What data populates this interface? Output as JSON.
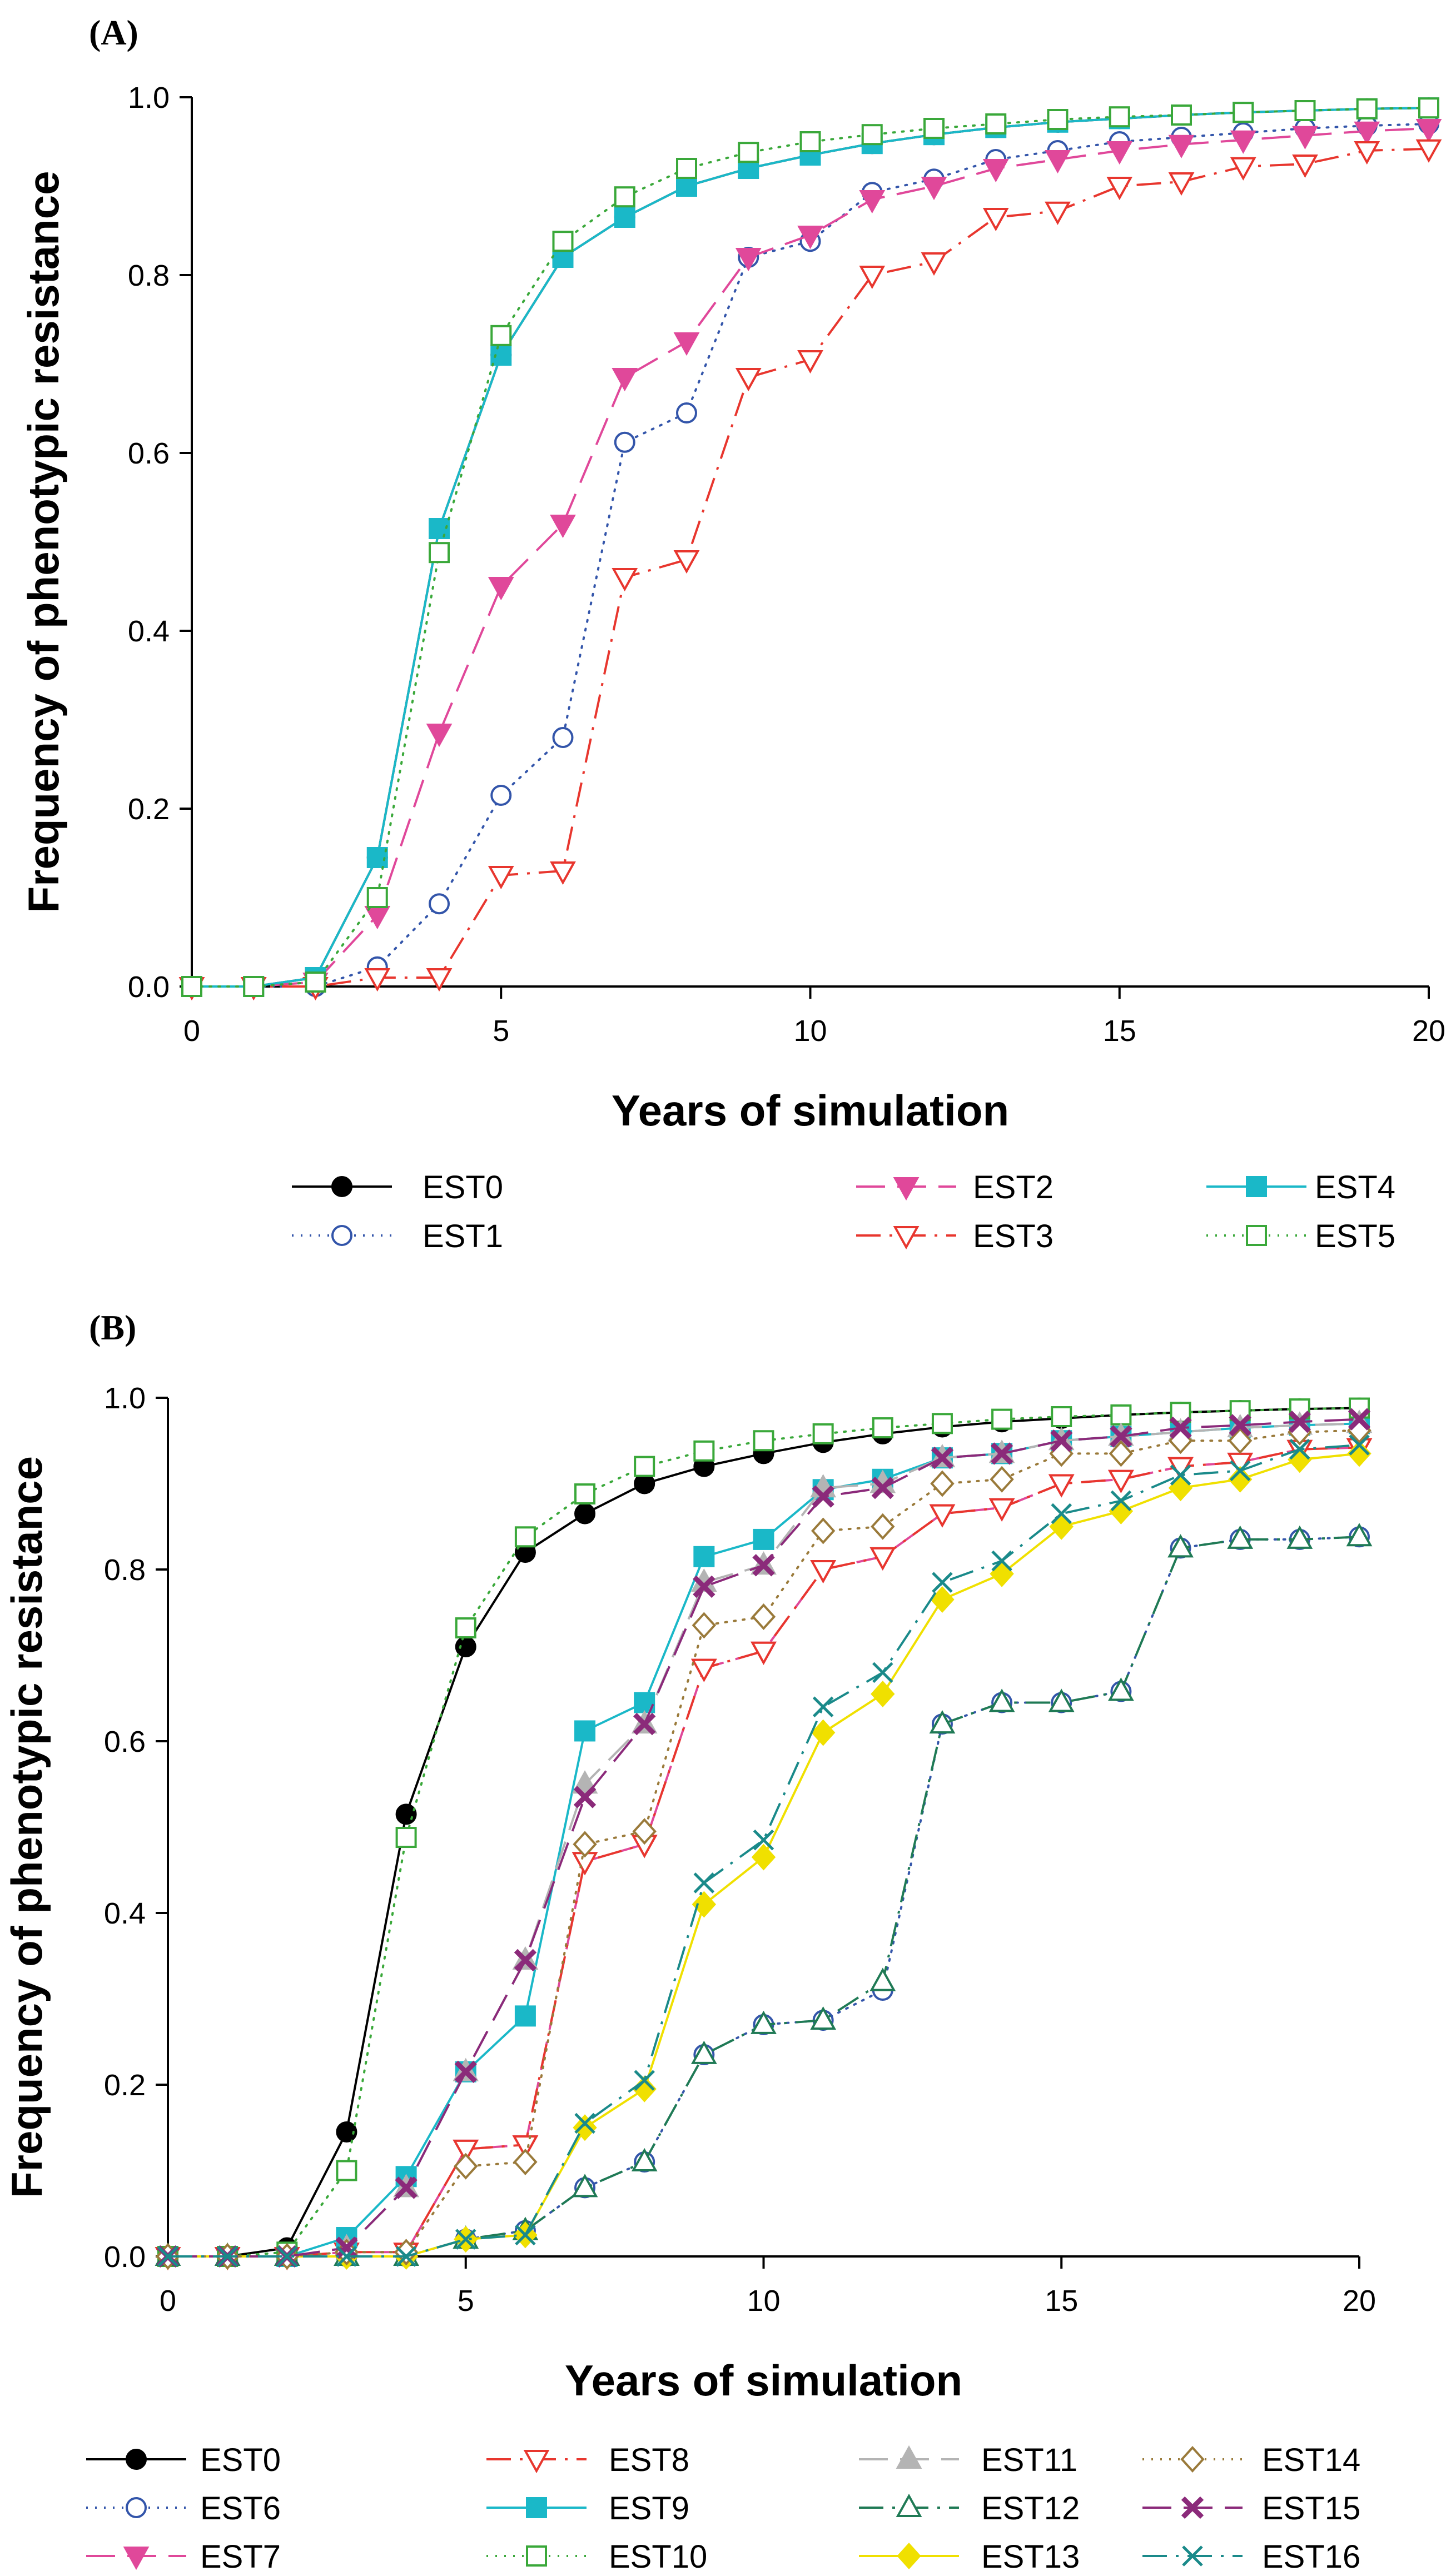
{
  "chart_data": [
    {
      "type": "line",
      "panel_label": "(A)",
      "xlabel": "Years of simulation",
      "ylabel": "Frequency of phenotypic resistance",
      "xlim": [
        0,
        20
      ],
      "ylim": [
        0,
        1.0
      ],
      "xticks": [
        0,
        5,
        10,
        15,
        20
      ],
      "yticks": [
        "0.0",
        "0.2",
        "0.4",
        "0.6",
        "0.8",
        "1.0"
      ],
      "grid": false,
      "legend_position": "bottom",
      "x": [
        0,
        1,
        2,
        3,
        4,
        5,
        6,
        7,
        8,
        9,
        10,
        11,
        12,
        13,
        14,
        15,
        16,
        17,
        18,
        19,
        20
      ],
      "series": [
        {
          "name": "EST0",
          "color": "#000000",
          "marker": "circle-filled",
          "dash": "solid",
          "values": [
            0,
            0,
            0.01,
            0.145,
            0.515,
            0.71,
            0.82,
            0.865,
            0.9,
            0.92,
            0.935,
            0.948,
            0.958,
            0.966,
            0.972,
            0.976,
            0.98,
            0.983,
            0.985,
            0.987,
            0.988
          ]
        },
        {
          "name": "EST1",
          "color": "#3355aa",
          "marker": "circle-open",
          "dash": "dot",
          "values": [
            0,
            0,
            0,
            0.022,
            0.093,
            0.215,
            0.28,
            0.612,
            0.645,
            0.82,
            0.838,
            0.893,
            0.908,
            0.93,
            0.94,
            0.95,
            0.955,
            0.96,
            0.965,
            0.968,
            0.97
          ]
        },
        {
          "name": "EST2",
          "color": "#e0489a",
          "marker": "triangle-down-filled",
          "dash": "longdash",
          "values": [
            0,
            0,
            0.005,
            0.08,
            0.285,
            0.45,
            0.52,
            0.685,
            0.725,
            0.82,
            0.845,
            0.885,
            0.9,
            0.92,
            0.93,
            0.94,
            0.947,
            0.952,
            0.957,
            0.962,
            0.965
          ]
        },
        {
          "name": "EST3",
          "color": "#e8362e",
          "marker": "triangle-down-open",
          "dash": "dashdot",
          "values": [
            0,
            0,
            0,
            0.01,
            0.01,
            0.125,
            0.13,
            0.46,
            0.48,
            0.685,
            0.705,
            0.8,
            0.815,
            0.865,
            0.872,
            0.9,
            0.905,
            0.922,
            0.925,
            0.94,
            0.942
          ]
        },
        {
          "name": "EST4",
          "color": "#1ab8c8",
          "marker": "square-filled",
          "dash": "solid",
          "values": [
            0,
            0,
            0.01,
            0.145,
            0.515,
            0.71,
            0.82,
            0.865,
            0.9,
            0.92,
            0.935,
            0.948,
            0.958,
            0.966,
            0.972,
            0.976,
            0.98,
            0.983,
            0.985,
            0.987,
            0.988
          ]
        },
        {
          "name": "EST5",
          "color": "#3aa83a",
          "marker": "square-open",
          "dash": "dot",
          "values": [
            0,
            0,
            0.005,
            0.1,
            0.488,
            0.732,
            0.838,
            0.888,
            0.92,
            0.938,
            0.95,
            0.958,
            0.965,
            0.97,
            0.975,
            0.978,
            0.98,
            0.983,
            0.985,
            0.987,
            0.988
          ]
        }
      ]
    },
    {
      "type": "line",
      "panel_label": "(B)",
      "xlabel": "Years of simulation",
      "ylabel": "Frequency of phenotypic resistance",
      "xlim": [
        0,
        20
      ],
      "ylim": [
        0,
        1.0
      ],
      "xticks": [
        0,
        5,
        10,
        15,
        20
      ],
      "yticks": [
        "0.0",
        "0.2",
        "0.4",
        "0.6",
        "0.8",
        "1.0"
      ],
      "grid": false,
      "legend_position": "bottom",
      "x": [
        0,
        1,
        2,
        3,
        4,
        5,
        6,
        7,
        8,
        9,
        10,
        11,
        12,
        13,
        14,
        15,
        16,
        17,
        18,
        19,
        20
      ],
      "series": [
        {
          "name": "EST0",
          "color": "#000000",
          "marker": "circle-filled",
          "dash": "solid",
          "values": [
            0,
            0,
            0.01,
            0.145,
            0.515,
            0.71,
            0.82,
            0.865,
            0.9,
            0.92,
            0.935,
            0.948,
            0.958,
            0.966,
            0.972,
            0.976,
            0.98,
            0.983,
            0.985,
            0.987,
            0.988
          ]
        },
        {
          "name": "EST6",
          "color": "#3355aa",
          "marker": "circle-open",
          "dash": "dot",
          "values": [
            0,
            0,
            0,
            0,
            0,
            0.02,
            0.03,
            0.08,
            0.11,
            0.235,
            0.27,
            0.275,
            0.31,
            0.62,
            0.645,
            0.645,
            0.658,
            0.825,
            0.835,
            0.835,
            0.838
          ]
        },
        {
          "name": "EST7",
          "color": "#e0489a",
          "marker": "triangle-down-filled",
          "dash": "longdash",
          "values": [
            0,
            0,
            0,
            0.005,
            0.005,
            0.125,
            0.13,
            0.46,
            0.48,
            0.685,
            0.705,
            0.8,
            0.815,
            0.865,
            0.872,
            0.9,
            0.905,
            0.92,
            0.925,
            0.94,
            0.942
          ]
        },
        {
          "name": "EST8",
          "color": "#e8362e",
          "marker": "triangle-down-open",
          "dash": "dashdot",
          "values": [
            0,
            0,
            0,
            0.005,
            0.005,
            0.125,
            0.13,
            0.46,
            0.48,
            0.685,
            0.705,
            0.8,
            0.815,
            0.865,
            0.872,
            0.9,
            0.905,
            0.92,
            0.925,
            0.94,
            0.942
          ]
        },
        {
          "name": "EST9",
          "color": "#1ab8c8",
          "marker": "square-filled",
          "dash": "solid",
          "values": [
            0,
            0,
            0,
            0.022,
            0.093,
            0.215,
            0.28,
            0.612,
            0.645,
            0.815,
            0.835,
            0.893,
            0.905,
            0.93,
            0.935,
            0.95,
            0.955,
            0.96,
            0.965,
            0.968,
            0.97
          ]
        },
        {
          "name": "EST10",
          "color": "#3aa83a",
          "marker": "square-open",
          "dash": "dot",
          "values": [
            0,
            0,
            0.005,
            0.1,
            0.488,
            0.732,
            0.838,
            0.888,
            0.92,
            0.938,
            0.95,
            0.958,
            0.965,
            0.97,
            0.975,
            0.978,
            0.98,
            0.983,
            0.985,
            0.987,
            0.988
          ]
        },
        {
          "name": "EST11",
          "color": "#b4b4b4",
          "marker": "triangle-up-filled",
          "dash": "longdash",
          "values": [
            0,
            0,
            0,
            0.01,
            0.08,
            0.215,
            0.345,
            0.55,
            0.62,
            0.785,
            0.805,
            0.895,
            0.9,
            0.93,
            0.935,
            0.95,
            0.955,
            0.96,
            0.965,
            0.968,
            0.97
          ]
        },
        {
          "name": "EST12",
          "color": "#1f7a55",
          "marker": "triangle-up-open",
          "dash": "dashdot",
          "values": [
            0,
            0,
            0,
            0,
            0,
            0.02,
            0.03,
            0.08,
            0.11,
            0.235,
            0.27,
            0.275,
            0.32,
            0.62,
            0.645,
            0.645,
            0.658,
            0.825,
            0.835,
            0.835,
            0.838
          ]
        },
        {
          "name": "EST13",
          "color": "#f0e000",
          "marker": "diamond-filled",
          "dash": "solid",
          "values": [
            0,
            0,
            0,
            0,
            0,
            0.02,
            0.025,
            0.15,
            0.195,
            0.41,
            0.465,
            0.61,
            0.655,
            0.765,
            0.795,
            0.85,
            0.868,
            0.895,
            0.905,
            0.928,
            0.935
          ]
        },
        {
          "name": "EST14",
          "color": "#9a7a3a",
          "marker": "diamond-open",
          "dash": "dot",
          "values": [
            0,
            0,
            0,
            0.005,
            0.005,
            0.105,
            0.11,
            0.48,
            0.495,
            0.735,
            0.745,
            0.845,
            0.85,
            0.9,
            0.905,
            0.935,
            0.935,
            0.95,
            0.95,
            0.96,
            0.962
          ]
        },
        {
          "name": "EST15",
          "color": "#8b2a7a",
          "marker": "x-cross",
          "dash": "longdash",
          "values": [
            0,
            0,
            0,
            0.01,
            0.08,
            0.215,
            0.345,
            0.535,
            0.62,
            0.78,
            0.805,
            0.885,
            0.895,
            0.93,
            0.935,
            0.95,
            0.955,
            0.965,
            0.968,
            0.972,
            0.975
          ]
        },
        {
          "name": "EST16",
          "color": "#1a8a8a",
          "marker": "x-thin",
          "dash": "dashdot",
          "values": [
            0,
            0,
            0,
            0,
            0,
            0.02,
            0.025,
            0.155,
            0.205,
            0.435,
            0.485,
            0.64,
            0.68,
            0.785,
            0.81,
            0.865,
            0.88,
            0.91,
            0.915,
            0.94,
            0.945
          ]
        }
      ]
    }
  ]
}
